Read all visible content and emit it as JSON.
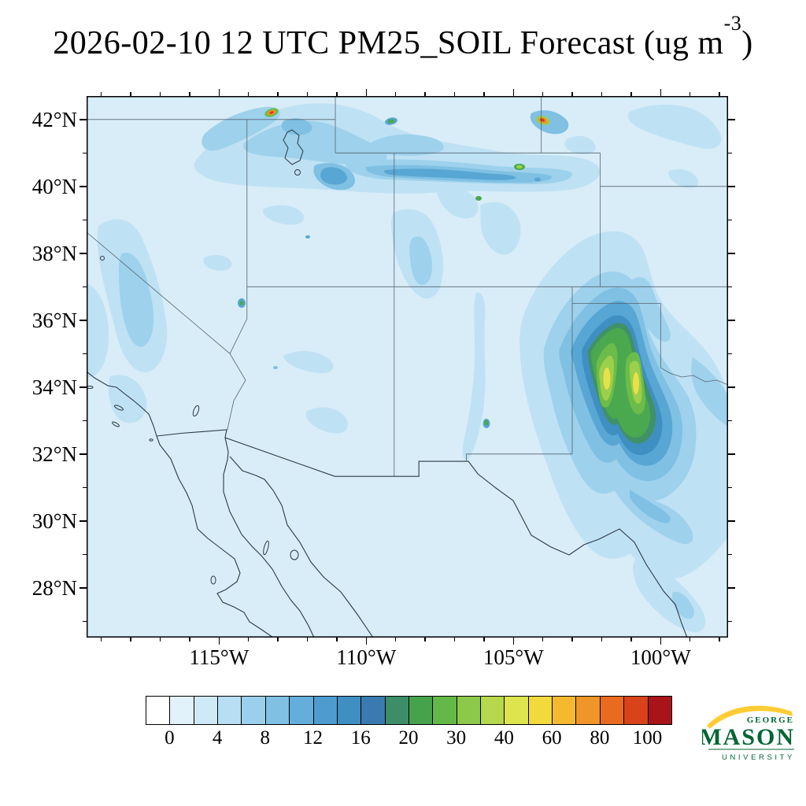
{
  "title": {
    "prefix": "2026-02-10 12 UTC PM25_SOIL Forecast (ug m",
    "superscript": "-3",
    "suffix": ")"
  },
  "axes": {
    "x_tick_labels": [
      "115°W",
      "110°W",
      "105°W",
      "100°W"
    ],
    "y_tick_labels": [
      "42°N",
      "40°N",
      "38°N",
      "36°N",
      "34°N",
      "32°N",
      "30°N",
      "28°N"
    ]
  },
  "colorbar": {
    "tick_labels": [
      "0",
      "4",
      "8",
      "12",
      "16",
      "20",
      "30",
      "40",
      "60",
      "80",
      "100"
    ],
    "tick_values": [
      0,
      4,
      8,
      12,
      16,
      20,
      30,
      40,
      60,
      80,
      100
    ],
    "cell_colors": [
      "#ffffff",
      "#e2f2fb",
      "#cfeaf7",
      "#b7def2",
      "#9bd0ec",
      "#7fc0e3",
      "#63aeda",
      "#4e9ccf",
      "#408fc2",
      "#3a7ab0",
      "#3c8d68",
      "#46a34c",
      "#63b847",
      "#8cc84a",
      "#b5d84c",
      "#dde44e",
      "#f2da3c",
      "#f4b92f",
      "#f0952a",
      "#e96c1e",
      "#d8431c",
      "#a81418"
    ]
  },
  "logo": {
    "george": "GEORGE",
    "mason": "MASON",
    "university": "UNIVERSITY",
    "green": "#006633",
    "gold": "#FFCC33"
  },
  "chart_data": {
    "type": "heatmap",
    "title": "2026-02-10 12 UTC PM25_SOIL Forecast (ug m-3)",
    "variable": "PM25_SOIL",
    "units": "ug m-3",
    "valid_time": "2026-02-10 12 UTC",
    "region": "Southwestern United States and northern Mexico",
    "lon_range_deg": [
      -119.5,
      -97.7
    ],
    "lat_range_deg": [
      26.5,
      42.7
    ],
    "x_tick_values_deg": [
      -115,
      -110,
      -105,
      -100
    ],
    "y_tick_values_deg": [
      42,
      40,
      38,
      36,
      34,
      32,
      30,
      28
    ],
    "contour_levels": [
      0,
      2,
      4,
      6,
      8,
      10,
      12,
      14,
      16,
      18,
      20,
      25,
      30,
      35,
      40,
      50,
      60,
      70,
      80,
      90,
      100
    ],
    "grid": false,
    "legend_position": "bottom horizontal colorbar",
    "features": [
      {
        "name": "west-texas-new-mexico-dust-plume",
        "center_lon": -101.8,
        "center_lat": 33.9,
        "peak_value_ug_m3": "40-50",
        "extent_lon": [
          -103.5,
          -100.0
        ],
        "extent_lat": [
          31.5,
          36.0
        ],
        "description": "Large dust plume over eastern New Mexico and the Texas panhandle; yellow 40-50 cores inside green 20-40 region with broad blue halo"
      },
      {
        "name": "northern-dust-band",
        "extent_lon": [
          -115.5,
          -103.5
        ],
        "extent_lat": [
          39.5,
          42.7
        ],
        "peak_value_ug_m3": "8-20",
        "description": "Wispy blue dust band across southern Idaho, northern Utah and southern Wyoming"
      },
      {
        "name": "hot-spot-southeast-idaho",
        "center_lon": -113.2,
        "center_lat": 42.2,
        "peak_value_ug_m3": "60-100",
        "description": "Small orange-red source spot ringed by green"
      },
      {
        "name": "hot-spot-wyoming-colorado-border",
        "center_lon": -104.1,
        "center_lat": 41.9,
        "peak_value_ug_m3": "80-100",
        "description": "Small red-orange source spot with short blue plume"
      },
      {
        "name": "california-terrain-dust",
        "extent_lon": [
          -119.5,
          -117.5
        ],
        "extent_lat": [
          33.5,
          39.5
        ],
        "peak_value_ug_m3": "2-8",
        "description": "Light blue bands along the Sierra Nevada and coastal ranges"
      },
      {
        "name": "central-new-mexico-source",
        "center_lon": -106.1,
        "center_lat": 32.9,
        "peak_value_ug_m3": "20-30",
        "description": "Small green speck in the Rio Grande valley"
      },
      {
        "name": "northeast-colorado-speck",
        "center_lon": -104.8,
        "center_lat": 40.6,
        "peak_value_ug_m3": "25-35",
        "description": "Small green speck on the Colorado plains"
      },
      {
        "name": "south-texas-wisps",
        "extent_lon": [
          -101.0,
          -97.7
        ],
        "extent_lat": [
          26.5,
          29.5
        ],
        "peak_value_ug_m3": "2-6",
        "description": "Faint blue wisps over south Texas and northern Mexico"
      },
      {
        "name": "background",
        "peak_value_ug_m3": "0-2",
        "description": "Pale blue background over most of the domain, including ocean"
      }
    ]
  }
}
